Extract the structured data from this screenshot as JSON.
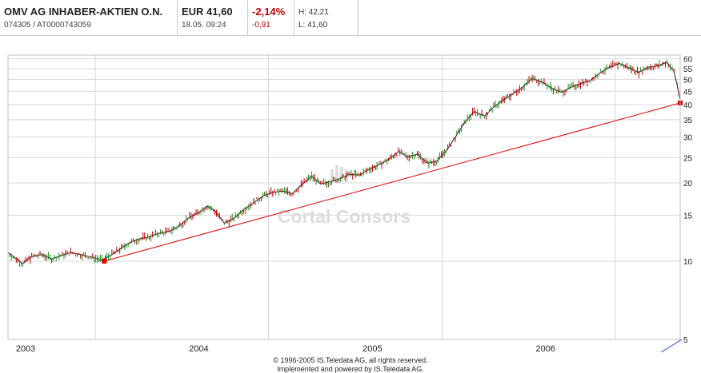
{
  "header": {
    "name": "OMV AG INHABER-AKTIEN O.N.",
    "ids": "074305  /  AT0000743059",
    "price": "EUR 41,60",
    "datetime": "18.05. 09:24",
    "change_pct": "-2,14%",
    "change_abs": "-0,91",
    "high": "H: 42,21",
    "low": "L: 41,60"
  },
  "watermark": "Cortal Consors",
  "footer": {
    "line1": "© 1996-2005 IS.Teledata AG, all rights reserved.",
    "line2": "Implemented and powered by IS.Teledata AG."
  },
  "colors": {
    "trend": "#e00000",
    "up": "#208a20",
    "down": "#c00000",
    "grid": "#d8d8d8",
    "wave": "#2040c0"
  },
  "chart_data": {
    "type": "line",
    "yscale": "log",
    "ylim": [
      5,
      62
    ],
    "yticks": [
      60,
      55,
      50,
      45,
      40,
      35,
      30,
      25,
      20,
      15,
      10,
      5
    ],
    "xlim": [
      "2002-07-01",
      "2006-05-18"
    ],
    "xticks": [
      {
        "label": "2003",
        "date": "2003-01-01"
      },
      {
        "label": "2004",
        "date": "2004-01-01"
      },
      {
        "label": "2005",
        "date": "2005-01-01"
      },
      {
        "label": "2006",
        "date": "2006-01-01"
      }
    ],
    "grid": true,
    "series": [
      {
        "x": [
          "2002-07-01",
          "2002-07-15",
          "2002-08-01",
          "2002-08-20",
          "2002-09-10",
          "2002-10-01",
          "2002-10-20",
          "2002-11-10",
          "2002-12-01",
          "2002-12-20",
          "2003-01-15",
          "2003-02-05",
          "2003-02-25",
          "2003-03-15",
          "2003-04-05",
          "2003-04-25",
          "2003-05-15",
          "2003-06-05",
          "2003-06-25",
          "2003-07-15",
          "2003-08-05",
          "2003-08-25",
          "2003-09-10",
          "2003-09-30",
          "2003-10-20",
          "2003-11-10",
          "2003-12-01",
          "2003-12-20",
          "2004-01-10",
          "2004-02-01",
          "2004-02-20",
          "2004-03-10",
          "2004-04-01",
          "2004-04-20",
          "2004-05-10",
          "2004-06-01",
          "2004-06-20",
          "2004-07-10",
          "2004-08-01",
          "2004-08-20",
          "2004-09-10",
          "2004-10-01",
          "2004-10-20",
          "2004-11-10",
          "2004-12-01",
          "2004-12-20",
          "2005-01-10",
          "2005-02-01",
          "2005-02-20",
          "2005-03-10",
          "2005-04-01",
          "2005-04-20",
          "2005-05-10",
          "2005-06-01",
          "2005-06-20",
          "2005-07-10",
          "2005-08-01",
          "2005-08-20",
          "2005-09-10",
          "2005-10-01",
          "2005-10-20",
          "2005-11-10",
          "2005-12-01",
          "2005-12-20",
          "2006-01-10",
          "2006-02-01",
          "2006-02-20",
          "2006-03-10",
          "2006-04-01",
          "2006-04-20",
          "2006-05-05",
          "2006-05-12",
          "2006-05-18"
        ],
        "y": [
          10.8,
          10.3,
          9.8,
          10.4,
          10.6,
          10.2,
          10.5,
          10.8,
          10.6,
          10.4,
          10.1,
          10.6,
          11.2,
          11.8,
          12.2,
          12.4,
          12.8,
          13.0,
          13.6,
          14.6,
          15.3,
          16.3,
          15.6,
          14.0,
          14.6,
          15.8,
          16.8,
          17.8,
          18.4,
          18.6,
          18.2,
          19.6,
          21.2,
          19.8,
          20.2,
          20.8,
          21.6,
          21.4,
          22.6,
          23.4,
          24.6,
          26.4,
          25.2,
          25.8,
          23.8,
          24.2,
          26.6,
          30.6,
          34.6,
          37.6,
          36.2,
          39.2,
          41.6,
          44.2,
          46.8,
          50.4,
          48.8,
          46.2,
          44.6,
          46.8,
          48.2,
          49.6,
          53.2,
          55.6,
          57.6,
          55.2,
          53.2,
          55.6,
          56.4,
          58.2,
          53.6,
          47.2,
          41.6
        ]
      }
    ],
    "trendline": {
      "x": [
        "2003-01-20",
        "2006-05-18"
      ],
      "y": [
        10.0,
        40.6
      ]
    }
  }
}
